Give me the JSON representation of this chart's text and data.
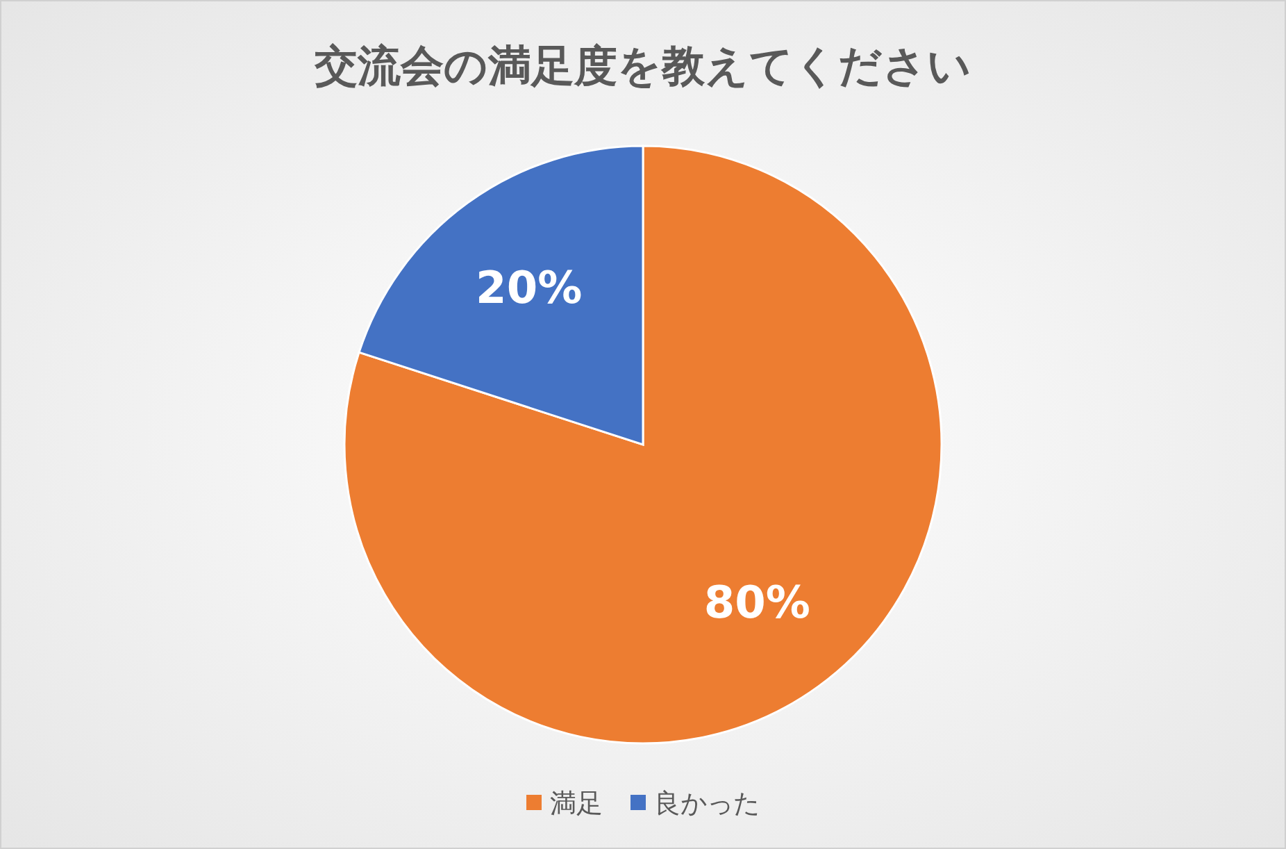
{
  "chart_data": {
    "type": "pie",
    "title": "交流会の満足度を教えてください",
    "categories": [
      "満足",
      "良かった"
    ],
    "values": [
      80,
      20
    ],
    "colors": [
      "#ed7d31",
      "#4472c4"
    ],
    "value_labels": [
      "80%",
      "20%"
    ],
    "legend": "bottom"
  }
}
